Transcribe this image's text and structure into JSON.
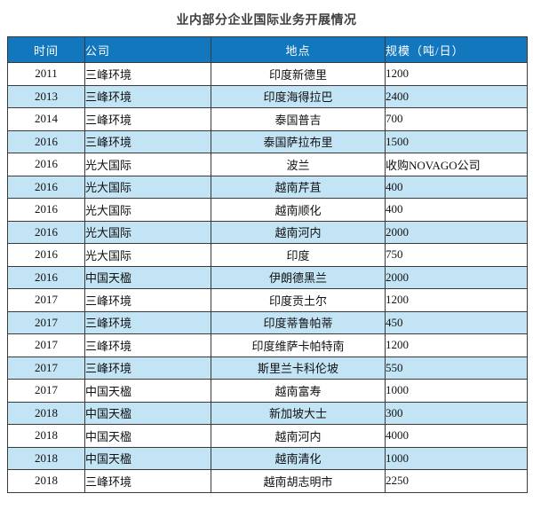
{
  "title": "业内部分企业国际业务开展情况",
  "table": {
    "headers": [
      "时间",
      "公司",
      "地点",
      "规模（吨/日）"
    ],
    "rows": [
      {
        "time": "2011",
        "company": "三峰环境",
        "location": "印度新德里",
        "scale": "1200"
      },
      {
        "time": "2013",
        "company": "三峰环境",
        "location": "印度海得拉巴",
        "scale": "2400"
      },
      {
        "time": "2014",
        "company": "三峰环境",
        "location": "泰国普吉",
        "scale": "700"
      },
      {
        "time": "2016",
        "company": "三峰环境",
        "location": "泰国萨拉布里",
        "scale": "1500"
      },
      {
        "time": "2016",
        "company": "光大国际",
        "location": "波兰",
        "scale": "收购NOVAGO公司"
      },
      {
        "time": "2016",
        "company": "光大国际",
        "location": "越南芹苴",
        "scale": "400"
      },
      {
        "time": "2016",
        "company": "光大国际",
        "location": "越南顺化",
        "scale": "400"
      },
      {
        "time": "2016",
        "company": "光大国际",
        "location": "越南河内",
        "scale": "2000"
      },
      {
        "time": "2016",
        "company": "光大国际",
        "location": "印度",
        "scale": "750"
      },
      {
        "time": "2016",
        "company": "中国天楹",
        "location": "伊朗德黑兰",
        "scale": "2000"
      },
      {
        "time": "2017",
        "company": "三峰环境",
        "location": "印度贡土尔",
        "scale": "1200"
      },
      {
        "time": "2017",
        "company": "三峰环境",
        "location": "印度蒂鲁帕蒂",
        "scale": "450"
      },
      {
        "time": "2017",
        "company": "三峰环境",
        "location": "印度维萨卡帕特南",
        "scale": "1200"
      },
      {
        "time": "2017",
        "company": "三峰环境",
        "location": "斯里兰卡科伦坡",
        "scale": "550"
      },
      {
        "time": "2017",
        "company": "中国天楹",
        "location": "越南富寿",
        "scale": "1000"
      },
      {
        "time": "2018",
        "company": "中国天楹",
        "location": "新加坡大士",
        "scale": "300"
      },
      {
        "time": "2018",
        "company": "中国天楹",
        "location": "越南河内",
        "scale": "4000"
      },
      {
        "time": "2018",
        "company": "中国天楹",
        "location": "越南清化",
        "scale": "1000"
      },
      {
        "time": "2018",
        "company": "三峰环境",
        "location": "越南胡志明市",
        "scale": "2250"
      }
    ]
  },
  "colors": {
    "header_bg": "#1377bd",
    "header_text": "#ffffff",
    "row_bg": "#ffffff",
    "row_alt_bg": "#c3e4f5",
    "border": "#3a3a3a",
    "title_text": "#3e3e3e",
    "cell_text": "#111111"
  }
}
